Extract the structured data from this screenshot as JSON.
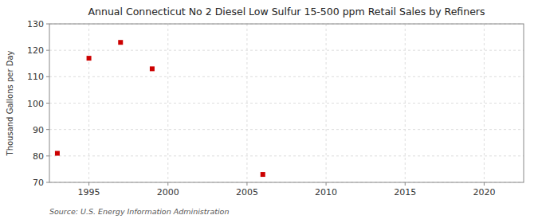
{
  "chart_data": {
    "type": "scatter",
    "title": "Annual Connecticut No 2 Diesel Low Sulfur 15-500 ppm Retail Sales by Refiners",
    "y_label": "Thousand Gallons per Day",
    "source": "Source: U.S. Energy Information Administration",
    "x": [
      1993,
      1995,
      1997,
      1999,
      2006
    ],
    "values": [
      81,
      117,
      123,
      113,
      73
    ],
    "xlim": [
      1992.5,
      2022.5
    ],
    "ylim": [
      70,
      130
    ],
    "xticks": [
      1995,
      2000,
      2005,
      2010,
      2015,
      2020
    ],
    "yticks": [
      70,
      80,
      90,
      100,
      110,
      120,
      130
    ],
    "color": "#cc0000",
    "marker": "square",
    "grid": true
  }
}
